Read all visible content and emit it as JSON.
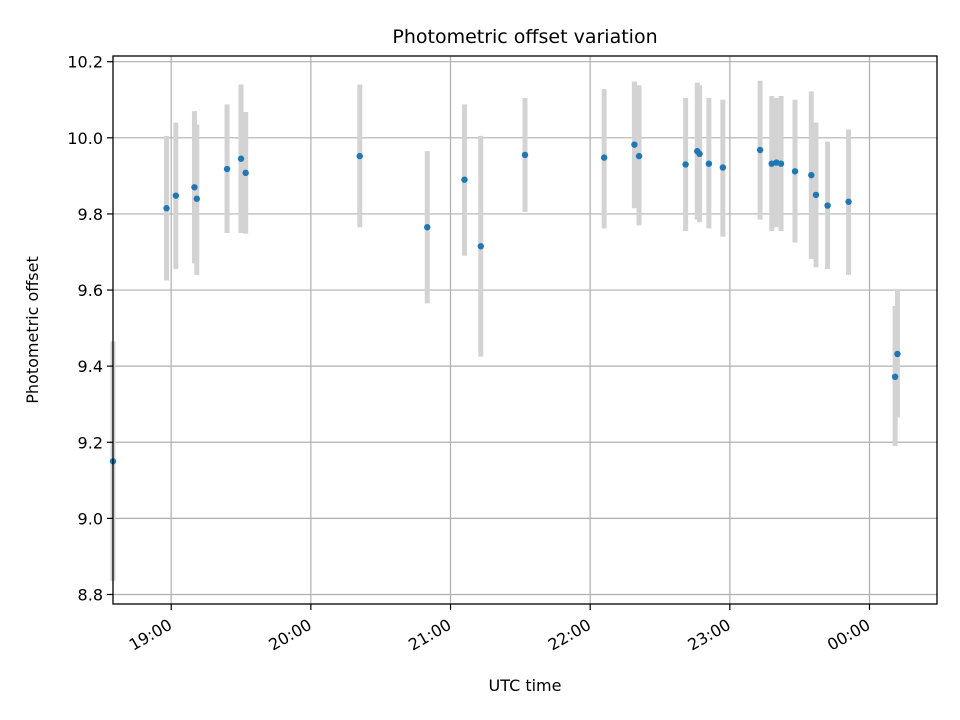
{
  "chart_data": {
    "type": "scatter",
    "title": "Photometric offset variation",
    "xlabel": "UTC time",
    "ylabel": "Photometric offset",
    "xlim": [
      "18:35",
      "00:29"
    ],
    "ylim": [
      8.775,
      10.215
    ],
    "x_ticks": [
      "19:00",
      "20:00",
      "21:00",
      "22:00",
      "23:00",
      "00:00"
    ],
    "y_ticks": [
      8.8,
      9.0,
      9.2,
      9.4,
      9.6,
      9.8,
      10.0,
      10.2
    ],
    "y_tick_labels": [
      "8.8",
      "9.0",
      "9.2",
      "9.4",
      "9.6",
      "9.8",
      "10.0",
      "10.2"
    ],
    "grid": true,
    "colors": {
      "point": "#1f77b4",
      "errorbar": "#d3d3d3",
      "grid": "#b0b0b0",
      "axis": "#000000"
    },
    "series": [
      {
        "points": [
          {
            "t": "18:35",
            "y": 9.15,
            "lo": 8.835,
            "hi": 9.465
          },
          {
            "t": "18:58",
            "y": 9.815,
            "lo": 9.625,
            "hi": 10.005
          },
          {
            "t": "19:02",
            "y": 9.848,
            "lo": 9.655,
            "hi": 10.04
          },
          {
            "t": "19:10",
            "y": 9.87,
            "lo": 9.67,
            "hi": 10.07
          },
          {
            "t": "19:11",
            "y": 9.84,
            "lo": 9.64,
            "hi": 10.035
          },
          {
            "t": "19:24",
            "y": 9.918,
            "lo": 9.75,
            "hi": 10.088
          },
          {
            "t": "19:30",
            "y": 9.945,
            "lo": 9.75,
            "hi": 10.14
          },
          {
            "t": "19:32",
            "y": 9.908,
            "lo": 9.748,
            "hi": 10.068
          },
          {
            "t": "20:21",
            "y": 9.952,
            "lo": 9.765,
            "hi": 10.14
          },
          {
            "t": "20:50",
            "y": 9.765,
            "lo": 9.565,
            "hi": 9.965
          },
          {
            "t": "21:06",
            "y": 9.89,
            "lo": 9.69,
            "hi": 10.088
          },
          {
            "t": "21:13",
            "y": 9.715,
            "lo": 9.425,
            "hi": 10.005
          },
          {
            "t": "21:32",
            "y": 9.955,
            "lo": 9.805,
            "hi": 10.105
          },
          {
            "t": "22:06",
            "y": 9.948,
            "lo": 9.762,
            "hi": 10.128
          },
          {
            "t": "22:19",
            "y": 9.982,
            "lo": 9.815,
            "hi": 10.148
          },
          {
            "t": "22:21",
            "y": 9.952,
            "lo": 9.77,
            "hi": 10.138
          },
          {
            "t": "22:41",
            "y": 9.93,
            "lo": 9.755,
            "hi": 10.105
          },
          {
            "t": "22:46",
            "y": 9.965,
            "lo": 9.785,
            "hi": 10.145
          },
          {
            "t": "22:47",
            "y": 9.958,
            "lo": 9.778,
            "hi": 10.138
          },
          {
            "t": "22:51",
            "y": 9.932,
            "lo": 9.762,
            "hi": 10.105
          },
          {
            "t": "22:57",
            "y": 9.922,
            "lo": 9.74,
            "hi": 10.1
          },
          {
            "t": "23:13",
            "y": 9.968,
            "lo": 9.785,
            "hi": 10.15
          },
          {
            "t": "23:18",
            "y": 9.932,
            "lo": 9.755,
            "hi": 10.11
          },
          {
            "t": "23:20",
            "y": 9.935,
            "lo": 9.765,
            "hi": 10.105
          },
          {
            "t": "23:22",
            "y": 9.932,
            "lo": 9.755,
            "hi": 10.11
          },
          {
            "t": "23:28",
            "y": 9.912,
            "lo": 9.725,
            "hi": 10.1
          },
          {
            "t": "23:35",
            "y": 9.902,
            "lo": 9.682,
            "hi": 10.122
          },
          {
            "t": "23:37",
            "y": 9.85,
            "lo": 9.66,
            "hi": 10.04
          },
          {
            "t": "23:42",
            "y": 9.822,
            "lo": 9.655,
            "hi": 9.99
          },
          {
            "t": "23:51",
            "y": 9.832,
            "lo": 9.64,
            "hi": 10.022
          },
          {
            "t": "00:11",
            "y": 9.372,
            "lo": 9.19,
            "hi": 9.558
          },
          {
            "t": "00:12",
            "y": 9.432,
            "lo": 9.265,
            "hi": 9.6
          }
        ]
      }
    ]
  }
}
